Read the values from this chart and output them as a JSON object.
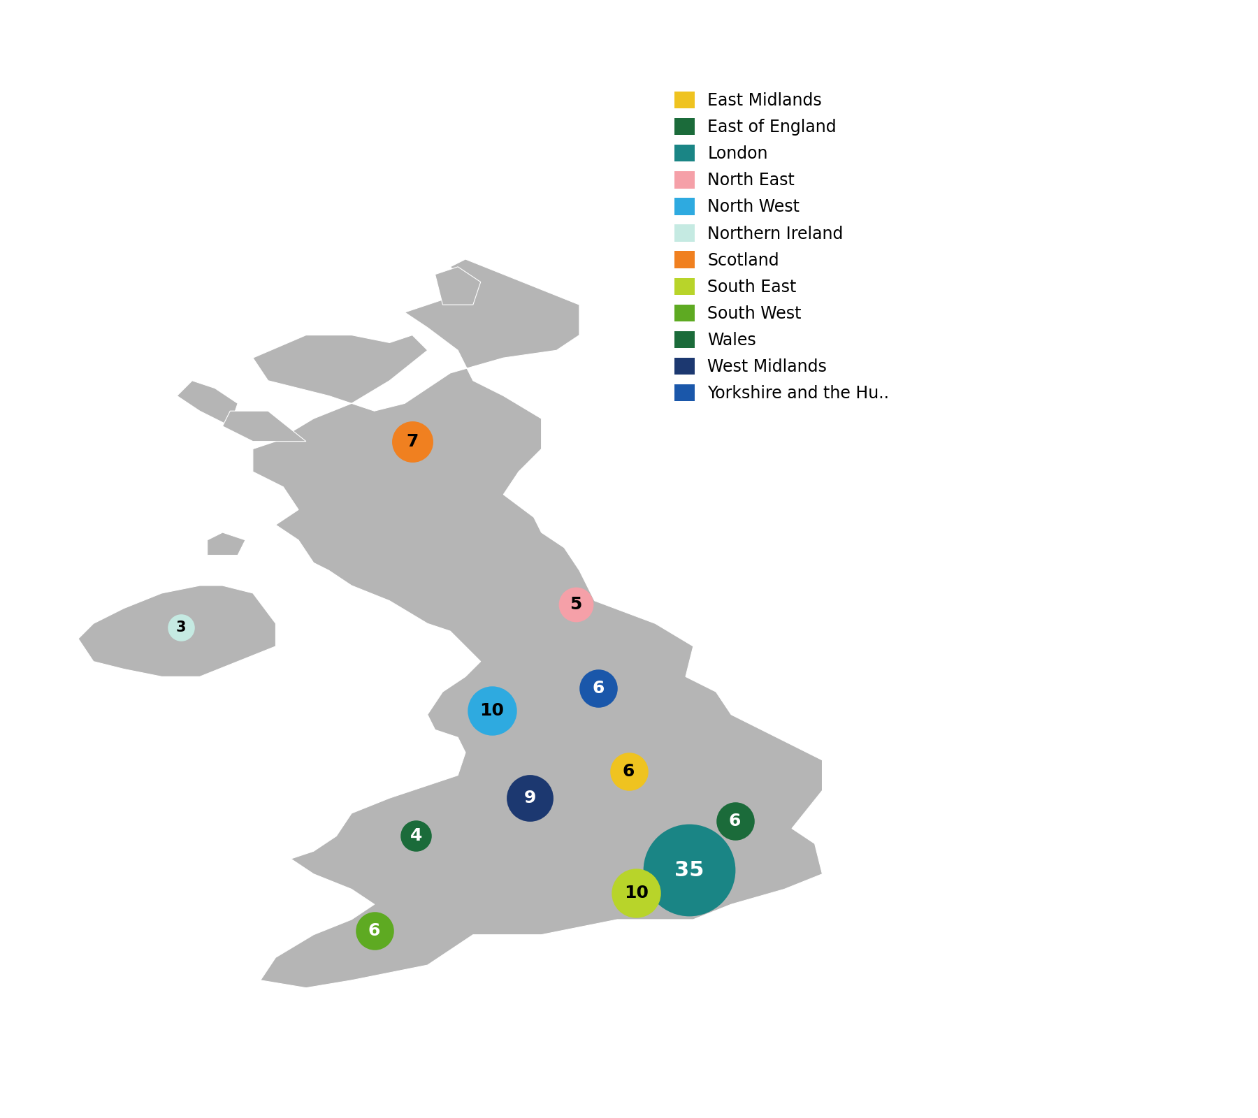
{
  "regions": [
    {
      "name": "East Midlands",
      "value": 6,
      "color": "#EFC320",
      "lon": -0.85,
      "lat": 52.75,
      "text_color": "black"
    },
    {
      "name": "East of England",
      "value": 6,
      "color": "#1B6B3A",
      "lon": 0.55,
      "lat": 52.1,
      "text_color": "white"
    },
    {
      "name": "London",
      "value": 35,
      "color": "#1A8585",
      "lon": -0.05,
      "lat": 51.45,
      "text_color": "white"
    },
    {
      "name": "North East",
      "value": 5,
      "color": "#F5A0A8",
      "lon": -1.55,
      "lat": 54.95,
      "text_color": "black"
    },
    {
      "name": "North West",
      "value": 10,
      "color": "#2EAAE0",
      "lon": -2.65,
      "lat": 53.55,
      "text_color": "black"
    },
    {
      "name": "Northern Ireland",
      "value": 3,
      "color": "#C5EAE2",
      "lon": -6.75,
      "lat": 54.65,
      "text_color": "black"
    },
    {
      "name": "Scotland",
      "value": 7,
      "color": "#F08020",
      "lon": -3.7,
      "lat": 57.1,
      "text_color": "black"
    },
    {
      "name": "South East",
      "value": 10,
      "color": "#B8D42A",
      "lon": -0.75,
      "lat": 51.15,
      "text_color": "black"
    },
    {
      "name": "South West",
      "value": 6,
      "color": "#5EAA22",
      "lon": -4.2,
      "lat": 50.65,
      "text_color": "white"
    },
    {
      "name": "Wales",
      "value": 4,
      "color": "#1B6B3A",
      "lon": -3.65,
      "lat": 51.9,
      "text_color": "white"
    },
    {
      "name": "West Midlands",
      "value": 9,
      "color": "#1C3870",
      "lon": -2.15,
      "lat": 52.4,
      "text_color": "white"
    },
    {
      "name": "Yorkshire and the Hu..",
      "value": 6,
      "color": "#1A57AA",
      "lon": -1.25,
      "lat": 53.85,
      "text_color": "white"
    }
  ],
  "legend_colors": {
    "East Midlands": "#EFC320",
    "East of England": "#1B6B3A",
    "London": "#1A8585",
    "North East": "#F5A0A8",
    "North West": "#2EAAE0",
    "Northern Ireland": "#C5EAE2",
    "Scotland": "#F08020",
    "South East": "#B8D42A",
    "South West": "#5EAA22",
    "Wales": "#1B6B3A",
    "West Midlands": "#1C3870",
    "Yorkshire and the Hu..": "#1A57AA"
  },
  "map_color": "#B5B5B5",
  "map_edge_color": "#FFFFFF",
  "background_color": "#FFFFFF",
  "font_size_bubble": 18,
  "font_size_legend": 17,
  "xlim": [
    -8.8,
    2.8
  ],
  "ylim": [
    49.3,
    61.8
  ],
  "figsize": [
    18.0,
    16.0
  ]
}
